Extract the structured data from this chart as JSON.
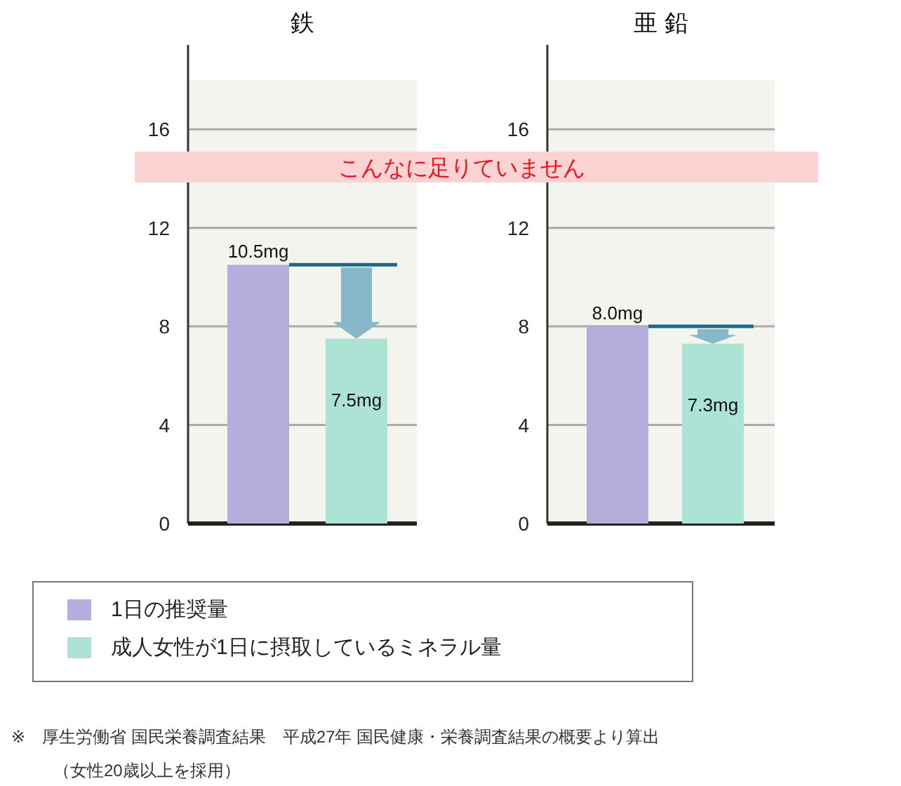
{
  "chart_data": [
    {
      "type": "bar",
      "title": "鉄",
      "categories": [
        null,
        null
      ],
      "series": [
        {
          "name": "1日の推奨量",
          "color": "#b4aedc",
          "values": [
            10.5,
            null
          ],
          "value_labels": [
            "10.5mg",
            null
          ]
        },
        {
          "name": "成人女性が1日に摂取しているミネラル量",
          "color": "#ade3d5",
          "values": [
            null,
            7.5
          ],
          "value_labels": [
            null,
            "7.5mg"
          ]
        }
      ],
      "ylim": [
        0,
        18
      ],
      "yticks": [
        0,
        4,
        8,
        12,
        16
      ],
      "grid": "y",
      "legend": "bottom",
      "annotations": [
        "こんなに足りていません",
        "※　厚生労働省 国民栄養調査結果　平成27年 国民健康・栄養調査結果の概要より算出（女性20歳以上を採用）"
      ]
    },
    {
      "type": "bar",
      "title": "亜 鉛",
      "categories": [
        null,
        null
      ],
      "series": [
        {
          "color": "#b4aedc",
          "values": [
            8.0,
            null
          ],
          "value_labels": [
            "8.0mg",
            null
          ]
        },
        {
          "color": "#ade3d5",
          "values": [
            null,
            7.3
          ],
          "value_labels": [
            null,
            "7.3mg"
          ]
        }
      ],
      "ylim": [
        0,
        18
      ],
      "yticks": [
        0,
        4,
        8,
        12,
        16
      ],
      "grid": "y"
    }
  ]
}
